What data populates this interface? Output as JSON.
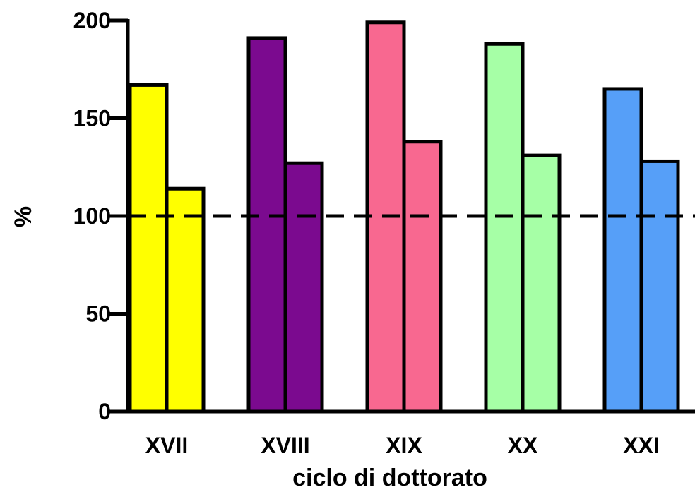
{
  "chart_data": {
    "type": "bar",
    "title": "",
    "xlabel": "ciclo di dottorato",
    "ylabel": "%",
    "ylim": [
      0,
      200
    ],
    "yticks": [
      "0",
      "50",
      "100",
      "150",
      "200"
    ],
    "categories": [
      "XVII",
      "XVIII",
      "XIX",
      "XX",
      "XXI"
    ],
    "colors": [
      "#ffff00",
      "#7b0a8f",
      "#f86890",
      "#a6ffa6",
      "#569ff8"
    ],
    "series": [
      {
        "values": [
          167,
          191,
          199,
          188,
          165
        ]
      },
      {
        "values": [
          114,
          127,
          138,
          131,
          128
        ]
      }
    ],
    "reference_line": {
      "value": 100,
      "style": "dashed"
    },
    "grid": false,
    "legend": "none"
  }
}
